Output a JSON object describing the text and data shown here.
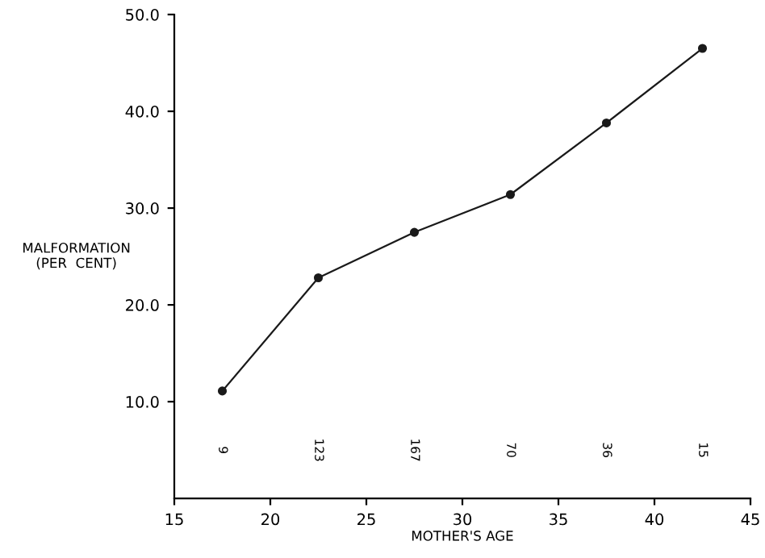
{
  "chart_data": {
    "type": "line",
    "xlabel": "MOTHER'S AGE",
    "ylabel": "MALFORMATION\n(PER  CENT)",
    "x": [
      17.5,
      22.5,
      27.5,
      32.5,
      37.5,
      42.5
    ],
    "series": [
      {
        "color": "#1a1a1a",
        "values": [
          11.1,
          22.8,
          27.5,
          31.4,
          38.8,
          46.5
        ]
      }
    ],
    "marker": "circle",
    "line_style": "solid",
    "grid": false,
    "legend": false,
    "xlim": [
      15,
      45
    ],
    "xticks": [
      15,
      20,
      25,
      30,
      35,
      40,
      45
    ],
    "ylim": [
      0,
      50
    ],
    "yticks": [
      {
        "value": 10,
        "label": "10.0"
      },
      {
        "value": 20,
        "label": "20.0"
      },
      {
        "value": 30,
        "label": "30.0"
      },
      {
        "value": 40,
        "label": "40.0"
      },
      {
        "value": 50,
        "label": "50.0"
      }
    ],
    "annotations": [
      "9",
      "123",
      "167",
      "70",
      "36",
      "15"
    ]
  }
}
